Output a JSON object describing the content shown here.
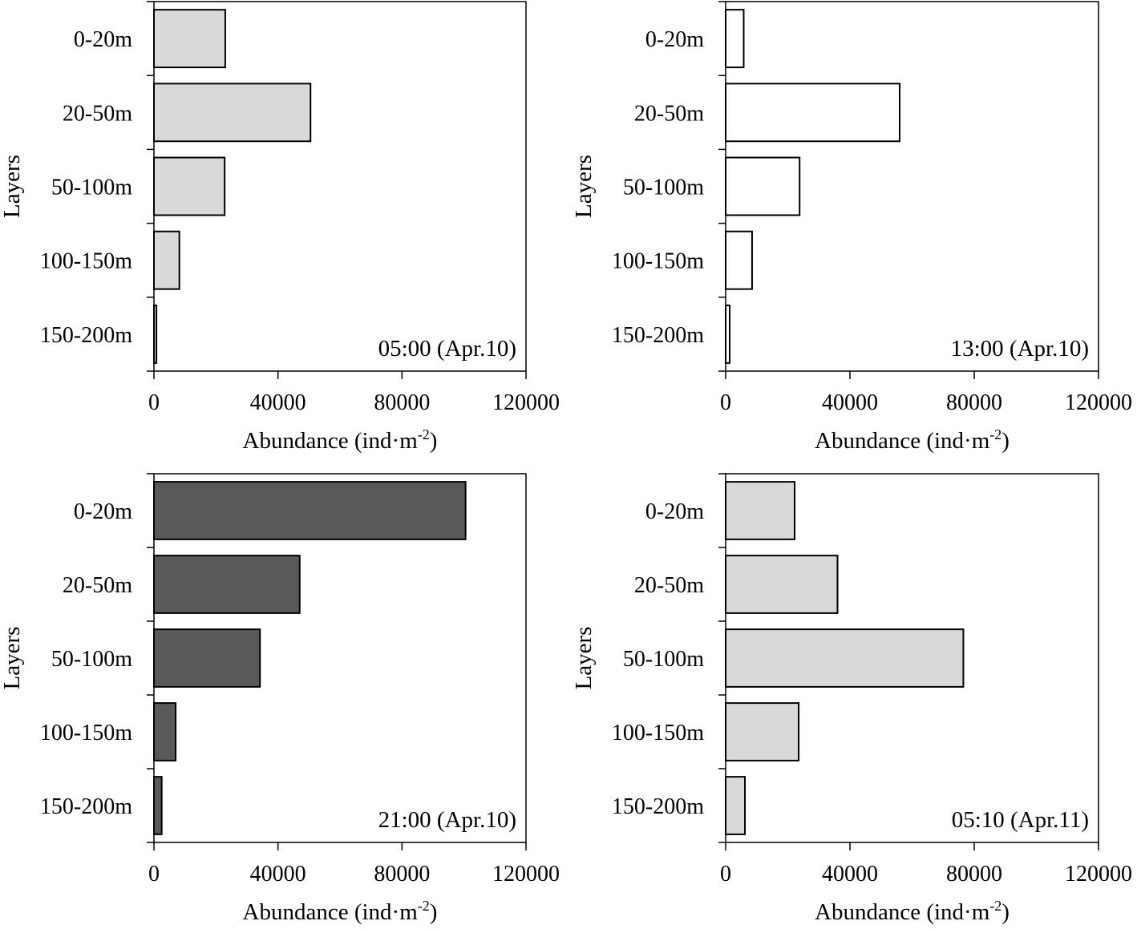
{
  "chart_data": [
    {
      "type": "bar",
      "orientation": "horizontal",
      "categories": [
        "0-20m",
        "20-50m",
        "50-100m",
        "100-150m",
        "150-200m"
      ],
      "values": [
        23000,
        50500,
        22800,
        8200,
        800
      ],
      "annotation": "05:00 (Apr.10)",
      "xlabel": "Abundance (ind·m",
      "xlabel_sup": "-2",
      "xlabel_close": ")",
      "ylabel": "Layers",
      "xlim": [
        0,
        120000
      ],
      "xticks": [
        "0",
        "40000",
        "80000",
        "120000"
      ],
      "bar_color": "#d9d9d9"
    },
    {
      "type": "bar",
      "orientation": "horizontal",
      "categories": [
        "0-20m",
        "20-50m",
        "50-100m",
        "100-150m",
        "150-200m"
      ],
      "values": [
        5800,
        56000,
        23800,
        8500,
        1300
      ],
      "annotation": "13:00 (Apr.10)",
      "xlabel": "Abundance (ind·m",
      "xlabel_sup": "-2",
      "xlabel_close": ")",
      "ylabel": "Layers",
      "xlim": [
        0,
        120000
      ],
      "xticks": [
        "0",
        "40000",
        "80000",
        "120000"
      ],
      "bar_color": "#ffffff"
    },
    {
      "type": "bar",
      "orientation": "horizontal",
      "categories": [
        "0-20m",
        "20-50m",
        "50-100m",
        "100-150m",
        "150-200m"
      ],
      "values": [
        100500,
        47000,
        34200,
        7000,
        2500
      ],
      "annotation": "21:00 (Apr.10)",
      "xlabel": "Abundance (ind·m",
      "xlabel_sup": "-2",
      "xlabel_close": ")",
      "ylabel": "Layers",
      "xlim": [
        0,
        120000
      ],
      "xticks": [
        "0",
        "40000",
        "80000",
        "120000"
      ],
      "bar_color": "#595959"
    },
    {
      "type": "bar",
      "orientation": "horizontal",
      "categories": [
        "0-20m",
        "20-50m",
        "50-100m",
        "100-150m",
        "150-200m"
      ],
      "values": [
        22200,
        36000,
        76500,
        23500,
        6200
      ],
      "annotation": "05:10 (Apr.11)",
      "xlabel": "Abundance (ind·m",
      "xlabel_sup": "-2",
      "xlabel_close": ")",
      "ylabel": "Layers",
      "xlim": [
        0,
        120000
      ],
      "xticks": [
        "0",
        "40000",
        "80000",
        "120000"
      ],
      "bar_color": "#d9d9d9"
    }
  ]
}
